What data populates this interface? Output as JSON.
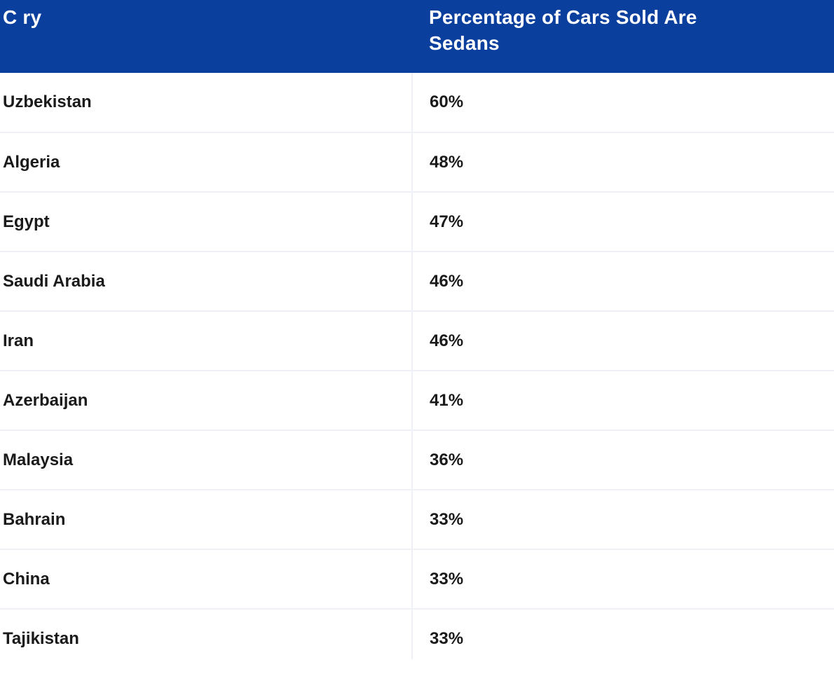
{
  "table": {
    "headers": {
      "country": "C   ry",
      "percentage": "Percentage of Cars Sold Are Sedans"
    },
    "rows": [
      {
        "country": "Uzbekistan",
        "percentage": "60%"
      },
      {
        "country": "Algeria",
        "percentage": "48%"
      },
      {
        "country": "Egypt",
        "percentage": "47%"
      },
      {
        "country": "Saudi Arabia",
        "percentage": "46%"
      },
      {
        "country": "Iran",
        "percentage": "46%"
      },
      {
        "country": "Azerbaijan",
        "percentage": "41%"
      },
      {
        "country": "Malaysia",
        "percentage": "36%"
      },
      {
        "country": "Bahrain",
        "percentage": "33%"
      },
      {
        "country": "China",
        "percentage": "33%"
      },
      {
        "country": "Tajikistan",
        "percentage": "33%"
      }
    ]
  },
  "colors": {
    "header_background": "#0b3f9e",
    "header_text": "#ffffff",
    "cell_text": "#1a1a1a",
    "grid_line": "#eef0f5"
  }
}
